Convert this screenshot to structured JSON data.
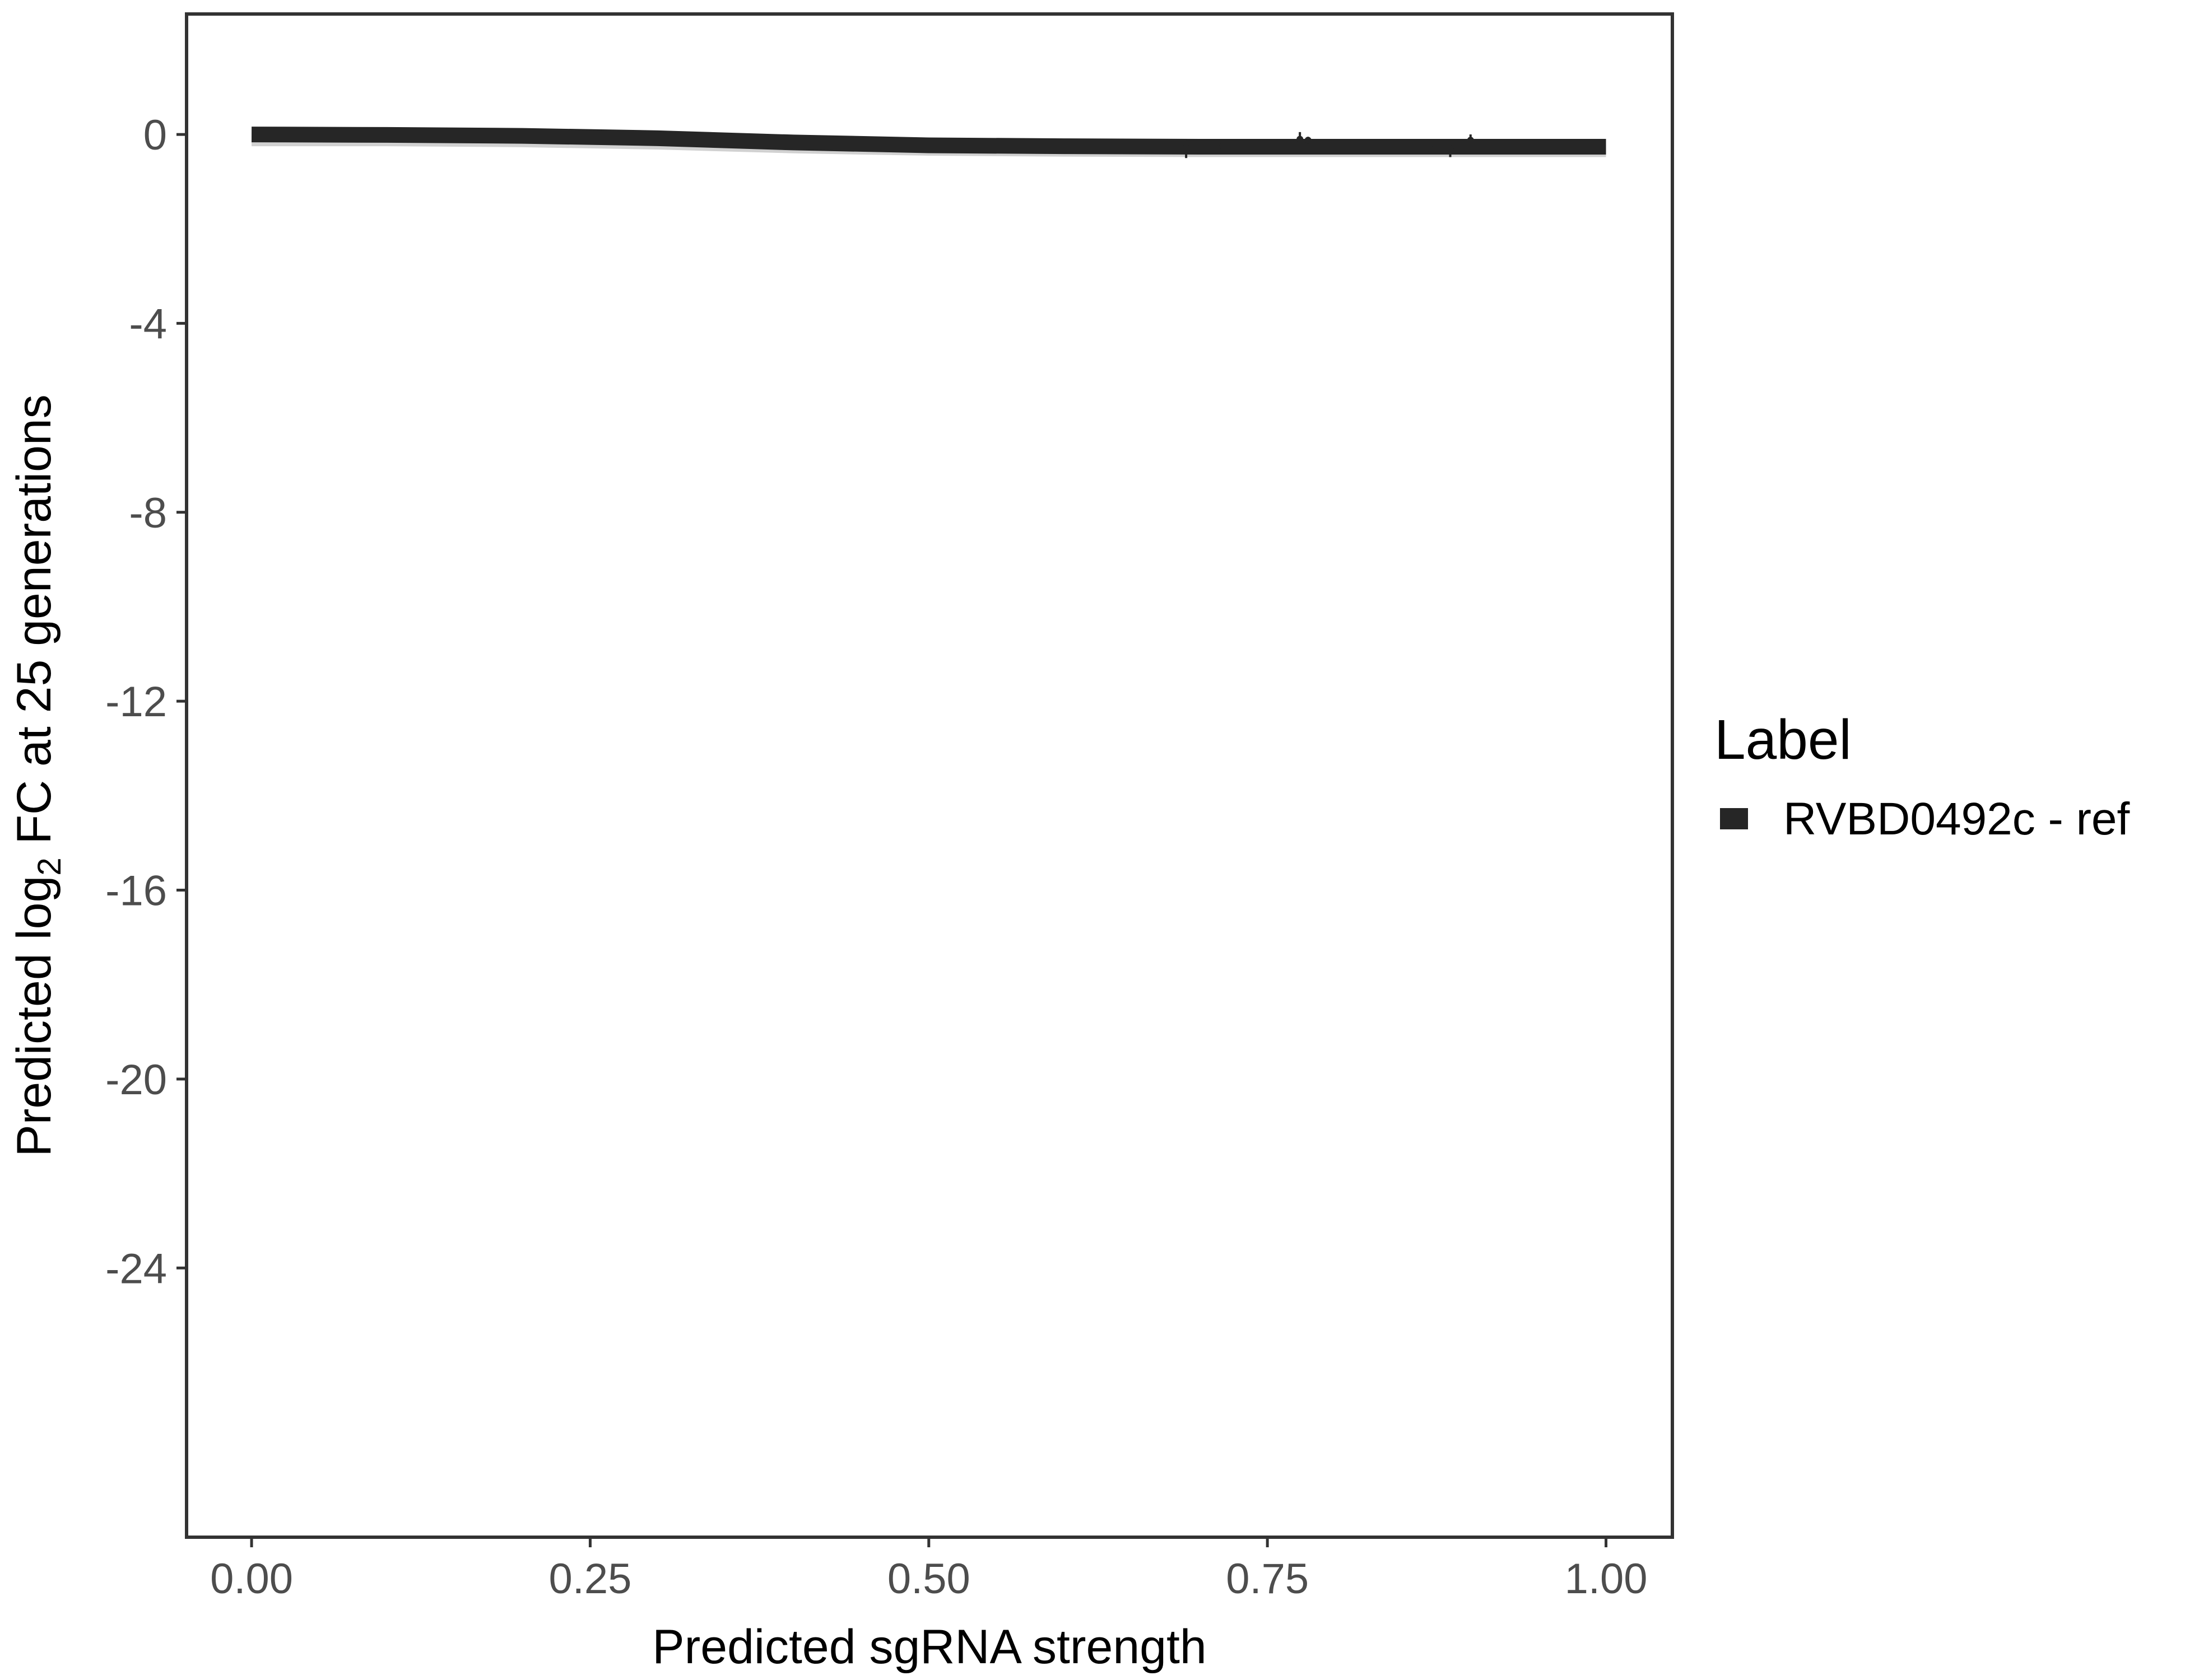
{
  "chart_data": {
    "type": "line",
    "title": "",
    "xlabel": "Predicted sgRNA strength",
    "ylabel_parts": {
      "pre": "Predicted  log",
      "sub": "2",
      "post": " FC at 25 generations"
    },
    "xlim": [
      -0.048,
      1.049
    ],
    "ylim": [
      -29.7,
      2.55
    ],
    "x_ticks": [
      0,
      0.25,
      0.5,
      0.75,
      1
    ],
    "x_tick_labels": [
      "0.00",
      "0.25",
      "0.50",
      "0.75",
      "1.00"
    ],
    "y_ticks": [
      0,
      -4,
      -8,
      -12,
      -16,
      -20,
      -24
    ],
    "y_tick_labels": [
      "0",
      "-4",
      "-8",
      "-12",
      "-16",
      "-20",
      "-24"
    ],
    "grid": false,
    "legend": {
      "title": "Label",
      "placement": "right",
      "entries": [
        {
          "name": "RVBD0492c - ref",
          "color": "#262626"
        }
      ]
    },
    "series": [
      {
        "name": "RVBD0492c - ref",
        "color": "#262626",
        "x": [
          0,
          0.1,
          0.2,
          0.3,
          0.4,
          0.5,
          0.6,
          0.7,
          0.8,
          0.9,
          1.0
        ],
        "y": [
          0,
          -0.01,
          -0.03,
          -0.08,
          -0.17,
          -0.23,
          -0.25,
          -0.26,
          -0.26,
          -0.26,
          -0.26
        ],
        "ci_lower": [
          -0.25,
          -0.25,
          -0.27,
          -0.32,
          -0.4,
          -0.45,
          -0.47,
          -0.48,
          -0.48,
          -0.48,
          -0.48
        ],
        "ci_upper": [
          0.05,
          0.04,
          0.02,
          -0.03,
          -0.12,
          -0.18,
          -0.2,
          -0.21,
          -0.21,
          -0.21,
          -0.21
        ]
      }
    ],
    "points": [
      {
        "x": 0.69,
        "y": -0.28,
        "lo": -0.5,
        "hi": -0.2
      },
      {
        "x": 0.717,
        "y": -0.25,
        "lo": -0.35,
        "hi": -0.15
      },
      {
        "x": 0.757,
        "y": -0.2,
        "lo": -0.3,
        "hi": -0.1
      },
      {
        "x": 0.774,
        "y": -0.1,
        "lo": -0.25,
        "hi": 0.05
      },
      {
        "x": 0.78,
        "y": -0.12,
        "lo": -0.2,
        "hi": -0.05
      },
      {
        "x": 0.87,
        "y": -0.3,
        "lo": -0.4,
        "hi": -0.2
      },
      {
        "x": 0.885,
        "y": -0.3,
        "lo": -0.48,
        "hi": -0.2
      },
      {
        "x": 0.9,
        "y": -0.12,
        "lo": -0.25,
        "hi": 0.0
      }
    ]
  }
}
